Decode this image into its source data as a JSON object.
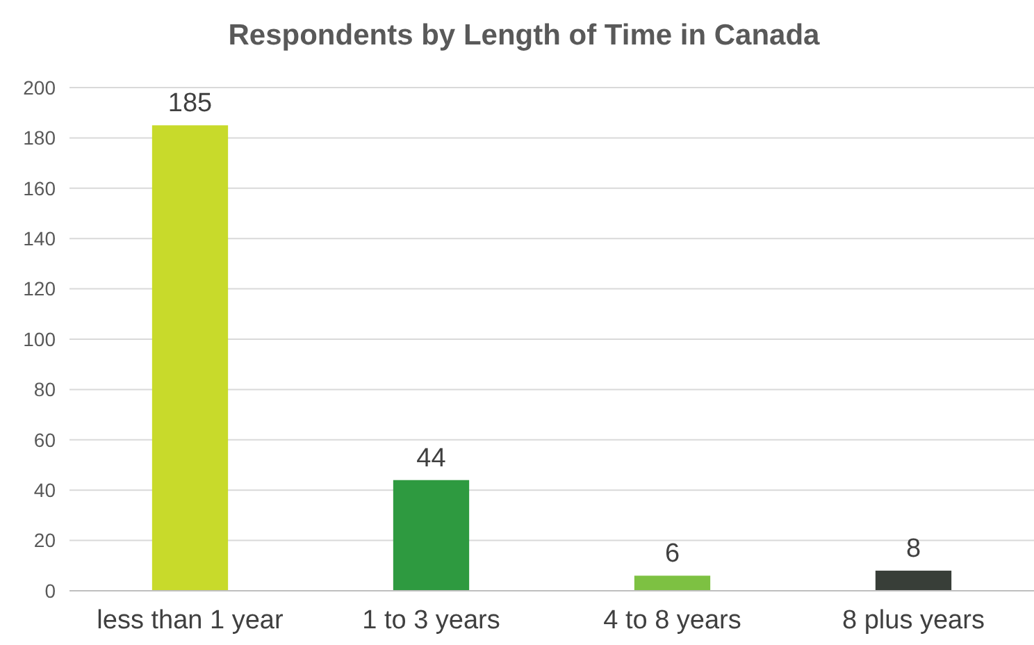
{
  "chart_data": {
    "type": "bar",
    "title": "Respondents by Length of Time in Canada",
    "categories": [
      "less than 1 year",
      "1 to 3 years",
      "4 to 8 years",
      "8 plus years"
    ],
    "values": [
      185,
      44,
      6,
      8
    ],
    "colors": [
      "#c8da2b",
      "#2e9a40",
      "#7dc142",
      "#383e38"
    ],
    "ylim": [
      0,
      200
    ],
    "yticks": [
      0,
      20,
      40,
      60,
      80,
      100,
      120,
      140,
      160,
      180,
      200
    ],
    "grid": "y",
    "data_labels": true
  }
}
